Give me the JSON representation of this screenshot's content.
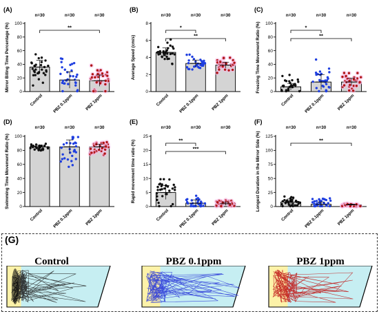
{
  "chart_data": [
    {
      "panel": "(A)",
      "type": "bar",
      "ylabel": "Mirror Biting Time Percentage (%)",
      "ylim": [
        0,
        100
      ],
      "yticks": [
        0,
        20,
        40,
        60,
        80,
        100
      ],
      "categories": [
        "Control",
        "PBZ 0.1ppm",
        "PBZ 1ppm"
      ],
      "values": [
        36,
        17,
        16
      ],
      "n_labels": [
        "n=30",
        "n=30",
        "n=30"
      ],
      "significance": [
        {
          "from": 0,
          "to": 2,
          "label": "**"
        }
      ]
    },
    {
      "panel": "(B)",
      "type": "bar",
      "ylabel": "Average Speed (cm/s)",
      "ylim": [
        0,
        8
      ],
      "yticks": [
        0,
        2,
        4,
        6,
        8
      ],
      "categories": [
        "Control",
        "PBZ 0.1ppm",
        "PBZ 1ppm"
      ],
      "values": [
        4.6,
        3.3,
        3.1
      ],
      "n_labels": [
        "n=30",
        "n=30",
        "n=30"
      ],
      "significance": [
        {
          "from": 0,
          "to": 1,
          "label": "*"
        },
        {
          "from": 0,
          "to": 2,
          "label": "**"
        }
      ]
    },
    {
      "panel": "(C)",
      "type": "bar",
      "ylabel": "Freezing Time Movement Ratio (%)",
      "ylim": [
        0,
        100
      ],
      "yticks": [
        0,
        20,
        40,
        60,
        80,
        100
      ],
      "categories": [
        "Control",
        "PBZ 0.1ppm",
        "PBZ 1ppm"
      ],
      "values": [
        7,
        14,
        14
      ],
      "n_labels": [
        "n=30",
        "n=30",
        "n=30"
      ],
      "significance": [
        {
          "from": 0,
          "to": 1,
          "label": "*"
        },
        {
          "from": 0,
          "to": 2,
          "label": "**"
        }
      ]
    },
    {
      "panel": "(D)",
      "type": "bar",
      "ylabel": "Swimming Time Movement Ratio (%)",
      "ylim": [
        0,
        100
      ],
      "yticks": [
        0,
        20,
        40,
        60,
        80,
        100
      ],
      "categories": [
        "Control",
        "PBZ 0.1ppm",
        "PBZ 1ppm"
      ],
      "values": [
        85,
        85,
        85
      ],
      "n_labels": [
        "n=30",
        "n=30",
        "n=30"
      ],
      "significance": []
    },
    {
      "panel": "(E)",
      "type": "bar",
      "ylabel": "Rapid movement time ratio (%)",
      "ylim": [
        0,
        25
      ],
      "yticks": [
        0,
        5,
        10,
        15,
        20,
        25
      ],
      "categories": [
        "Control",
        "PBZ 0.1ppm",
        "PBZ 1ppm"
      ],
      "values": [
        5,
        1.2,
        1.0
      ],
      "n_labels": [
        "n=30",
        "n=30",
        "n=30"
      ],
      "significance": [
        {
          "from": 0,
          "to": 1,
          "label": "**"
        },
        {
          "from": 0,
          "to": 2,
          "label": "***"
        }
      ]
    },
    {
      "panel": "(F)",
      "type": "bar",
      "ylabel": "Longest  Duration in the Mirror  Side (%)",
      "ylim": [
        0,
        125
      ],
      "yticks": [
        0,
        25,
        50,
        75,
        100,
        125
      ],
      "categories": [
        "Control",
        "PBZ 0.1ppm",
        "PBZ 1ppm"
      ],
      "values": [
        8,
        4,
        3
      ],
      "n_labels": [
        "n=30",
        "n=30",
        "n=30"
      ],
      "significance": [
        {
          "from": 0,
          "to": 2,
          "label": "**"
        }
      ]
    }
  ],
  "tracking": {
    "panel_label": "(G)",
    "titles": [
      "Control",
      "PBZ 0.1ppm",
      "PBZ 1ppm"
    ]
  },
  "colors": {
    "bar_fill": "#d4d4d4",
    "control_dots": "#111111",
    "low_dose_dots": "#1f3fe0",
    "high_dose_dots": "#b01515",
    "high_dose_halo": "#f6b8e4",
    "tank_water": "#c6eef2",
    "mirror_zone": "#fdf2a8",
    "trace_control": "#222222",
    "trace_low": "#2a38d8",
    "trace_high": "#c01818"
  }
}
